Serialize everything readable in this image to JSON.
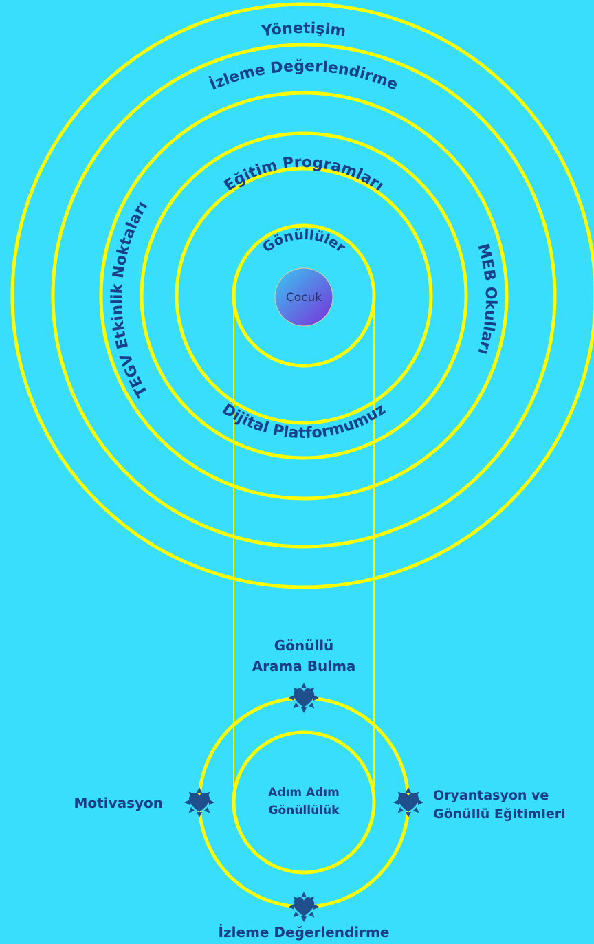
{
  "rings": {
    "yonetisim": "Yönetişim",
    "izleme": "İzleme Değerlendirme",
    "tegv": "TEGV Etkinlik Noktaları",
    "meb": "MEB Okulları",
    "egitim": "Eğitim Programları",
    "dijital": "Dijital Platformumuz",
    "gonulluler": "Gönüllüler"
  },
  "center": {
    "label": "Çocuk"
  },
  "cycle": {
    "center_line1": "Adım Adım",
    "center_line2": "Gönüllülük",
    "top_line1": "Gönüllü",
    "top_line2": "Arama Bulma",
    "left": "Motivasyon",
    "right_line1": "Oryantasyon ve",
    "right_line2": "Gönüllü Eğitimleri",
    "bottom": "İzleme Değerlendirme"
  },
  "colors": {
    "background": "#38DEFC",
    "ring": "#FFFF00",
    "text": "#1A3E86",
    "heart": "#1F4F8C",
    "center_gradient_start": "#3BC8F2",
    "center_gradient_end": "#7A2ED8"
  },
  "icons": [
    "heart-sun-icon"
  ]
}
